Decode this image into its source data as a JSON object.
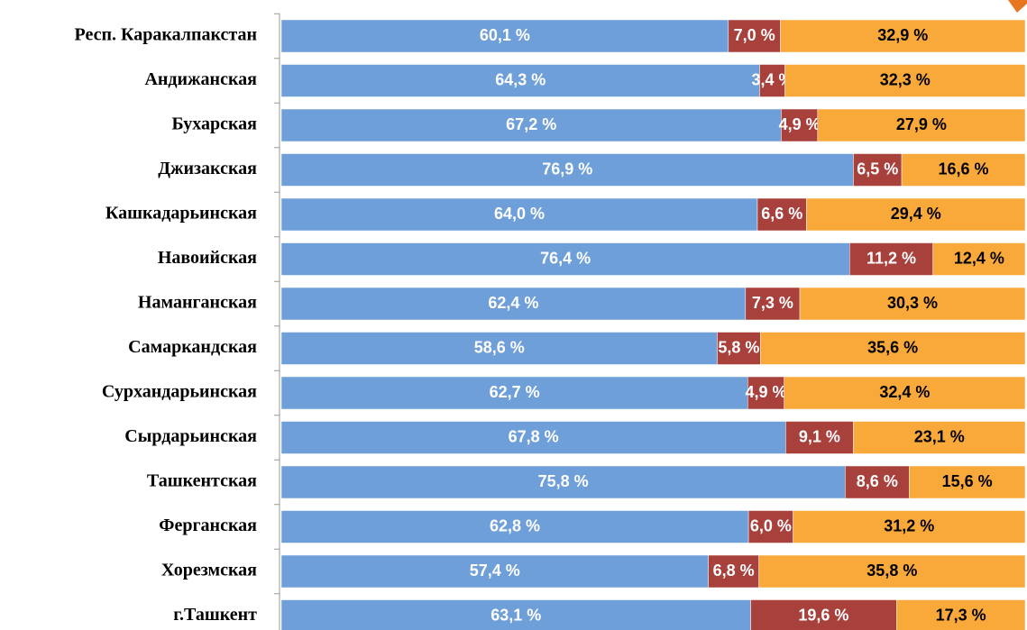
{
  "chart_data": {
    "type": "stacked-barh",
    "categories": [
      "Респ. Каракалпакстан",
      "Андижанская",
      "Бухарская",
      "Джизакская",
      "Кашкадарьинская",
      "Навоийская",
      "Наманганская",
      "Самаркандская",
      "Сурхандарьинская",
      "Сырдарьинская",
      "Ташкентская",
      "Ферганская",
      "Хорезмская",
      "г.Ташкент"
    ],
    "xlim": [
      0,
      100
    ],
    "series": [
      {
        "color": "#6f9fd8",
        "label_color": "#ffffff",
        "values": [
          60.1,
          64.3,
          67.2,
          76.9,
          64.0,
          76.4,
          62.4,
          58.6,
          62.7,
          67.8,
          75.8,
          62.8,
          57.4,
          63.1
        ],
        "value_labels": [
          "60,1 %",
          "64,3 %",
          "67,2 %",
          "76,9 %",
          "64,0 %",
          "76,4 %",
          "62,4 %",
          "58,6 %",
          "62,7 %",
          "67,8 %",
          "75,8 %",
          "62,8 %",
          "57,4 %",
          "63,1 %"
        ]
      },
      {
        "color": "#a8403c",
        "label_color": "#ffffff",
        "values": [
          7.0,
          3.4,
          4.9,
          6.5,
          6.6,
          11.2,
          7.3,
          5.8,
          4.9,
          9.1,
          8.6,
          6.0,
          6.8,
          19.6
        ],
        "value_labels": [
          "7,0 %",
          "3,4 %",
          "4,9 %",
          "6,5 %",
          "6,6 %",
          "11,2 %",
          "7,3 %",
          "5,8 %",
          "4,9 %",
          "9,1 %",
          "8,6 %",
          "6,0 %",
          "6,8 %",
          "19,6 %"
        ]
      },
      {
        "color": "#f9a83a",
        "label_color": "#000000",
        "values": [
          32.9,
          32.3,
          27.9,
          16.6,
          29.4,
          12.4,
          30.3,
          35.6,
          32.4,
          23.1,
          15.6,
          31.2,
          35.8,
          17.3
        ],
        "value_labels": [
          "32,9 %",
          "32,3 %",
          "27,9 %",
          "16,6 %",
          "29,4 %",
          "12,4 %",
          "30,3 %",
          "35,6 %",
          "32,4 %",
          "23,1 %",
          "15,6 %",
          "31,2 %",
          "35,8 %",
          "17,3 %"
        ]
      }
    ]
  }
}
